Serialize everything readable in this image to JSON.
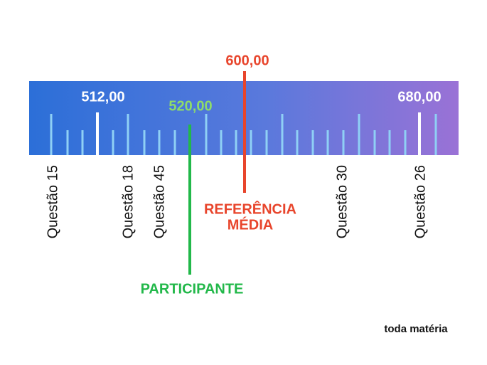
{
  "scale": {
    "markers": [
      {
        "label": "512,00"
      },
      {
        "label": "520,00",
        "caption": "PARTICIPANTE"
      },
      {
        "label": "600,00",
        "caption": [
          "REFERÊNCIA",
          "MÉDIA"
        ]
      },
      {
        "label": "680,00"
      }
    ],
    "questions": [
      "Questão 15",
      "Questão 18",
      "Questão 45",
      "Questão 30",
      "Questão 26"
    ]
  },
  "brand": "toda matéria"
}
